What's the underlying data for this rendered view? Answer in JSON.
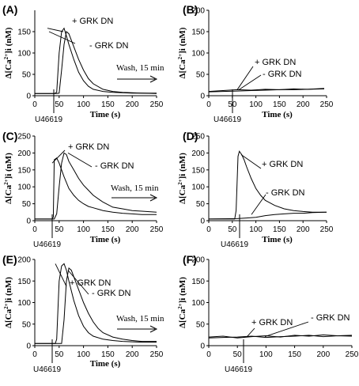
{
  "chart_data": [
    {
      "panel": "(A)",
      "type": "line",
      "xlabel": "Time (s)",
      "ylabel_parts": [
        "Δ[Ca",
        "2+",
        "]i (nM)"
      ],
      "xlim": [
        0,
        250
      ],
      "ylim": [
        0,
        200
      ],
      "xticks": [
        "0",
        "50",
        "100",
        "150",
        "200",
        "250"
      ],
      "yticks": [
        "0",
        "50",
        "100",
        "150"
      ],
      "annotations": [
        {
          "text": "+ GRK DN"
        },
        {
          "text": "- GRK DN"
        }
      ],
      "wash_label": "Wash, 15 min",
      "stimulus_label": "U46619",
      "stimulus_time": 50,
      "series": [
        {
          "name": "+ GRK DN",
          "x": [
            0,
            40,
            45,
            50,
            55,
            60,
            65,
            70,
            80,
            90,
            100,
            110,
            120,
            140,
            160,
            180,
            200,
            220,
            250
          ],
          "y": [
            5,
            5,
            8,
            100,
            150,
            158,
            140,
            120,
            85,
            55,
            35,
            22,
            15,
            10,
            8,
            7,
            6,
            6,
            5
          ]
        },
        {
          "name": "- GRK DN",
          "x": [
            0,
            45,
            50,
            55,
            60,
            65,
            70,
            75,
            80,
            90,
            100,
            110,
            120,
            140,
            160,
            180,
            200,
            220,
            250
          ],
          "y": [
            5,
            5,
            6,
            60,
            120,
            150,
            145,
            130,
            115,
            85,
            60,
            40,
            28,
            15,
            10,
            8,
            7,
            6,
            6
          ]
        }
      ]
    },
    {
      "panel": "(B)",
      "type": "line",
      "xlabel": "Time (s)",
      "ylabel_parts": [
        "Δ[Ca",
        "2+",
        "]i (nM)"
      ],
      "xlim": [
        0,
        250
      ],
      "ylim": [
        0,
        200
      ],
      "xticks": [
        "0",
        "50",
        "100",
        "150",
        "200",
        "250"
      ],
      "yticks": [
        "0",
        "50",
        "100",
        "150",
        "200"
      ],
      "annotations": [
        {
          "text": "+ GRK DN"
        },
        {
          "text": "- GRK DN"
        }
      ],
      "stimulus_label": "U46619",
      "stimulus_time": 60,
      "series": [
        {
          "name": "+ GRK DN",
          "x": [
            0,
            30,
            60,
            90,
            120,
            150,
            180,
            210,
            245
          ],
          "y": [
            10,
            12,
            14,
            13,
            15,
            14,
            16,
            15,
            17
          ]
        },
        {
          "name": "- GRK DN",
          "x": [
            0,
            30,
            60,
            90,
            120,
            150,
            180,
            210,
            245
          ],
          "y": [
            9,
            10,
            11,
            12,
            13,
            14,
            14,
            15,
            16
          ]
        }
      ]
    },
    {
      "panel": "(C)",
      "type": "line",
      "xlabel": "Time (s)",
      "ylabel_parts": [
        "Δ[Ca",
        "2+",
        "]i (nM)"
      ],
      "xlim": [
        0,
        250
      ],
      "ylim": [
        0,
        250
      ],
      "xticks": [
        "0",
        "50",
        "100",
        "150",
        "200",
        "250"
      ],
      "yticks": [
        "0",
        "50",
        "100",
        "150",
        "200",
        "250"
      ],
      "annotations": [
        {
          "text": "+ GRK DN"
        },
        {
          "text": "- GRK DN"
        }
      ],
      "wash_label": "Wash, 15 min",
      "stimulus_label": "U46619",
      "stimulus_time": 40,
      "series": [
        {
          "name": "+ GRK DN",
          "x": [
            0,
            35,
            38,
            40,
            45,
            50,
            60,
            70,
            80,
            90,
            100,
            110,
            120,
            140,
            160,
            180,
            200,
            220,
            250
          ],
          "y": [
            5,
            5,
            10,
            180,
            185,
            170,
            130,
            95,
            75,
            60,
            50,
            42,
            38,
            30,
            25,
            22,
            20,
            18,
            18
          ]
        },
        {
          "name": "- GRK DN",
          "x": [
            0,
            40,
            45,
            50,
            55,
            60,
            65,
            70,
            80,
            90,
            100,
            110,
            120,
            140,
            160,
            180,
            200,
            220,
            250
          ],
          "y": [
            5,
            5,
            20,
            100,
            170,
            200,
            195,
            175,
            150,
            125,
            105,
            90,
            75,
            55,
            40,
            35,
            30,
            28,
            25
          ]
        }
      ]
    },
    {
      "panel": "(D)",
      "type": "line",
      "xlabel": "Time (s)",
      "ylabel_parts": [
        "Δ[Ca",
        "2+",
        "]i (nM)"
      ],
      "xlim": [
        0,
        250
      ],
      "ylim": [
        0,
        250
      ],
      "xticks": [
        "0",
        "50",
        "100",
        "150",
        "200",
        "250"
      ],
      "yticks": [
        "0",
        "50",
        "100",
        "150",
        "200",
        "250"
      ],
      "annotations": [
        {
          "text": "+ GRK DN"
        },
        {
          "text": "- GRK DN"
        }
      ],
      "stimulus_label": "U46619",
      "stimulus_time": 60,
      "series": [
        {
          "name": "+ GRK DN",
          "x": [
            0,
            55,
            58,
            62,
            65,
            70,
            75,
            80,
            90,
            100,
            110,
            120,
            140,
            160,
            180,
            200,
            220,
            250
          ],
          "y": [
            5,
            5,
            30,
            190,
            205,
            195,
            180,
            160,
            125,
            95,
            75,
            60,
            45,
            35,
            30,
            27,
            25,
            25
          ]
        },
        {
          "name": "- GRK DN",
          "x": [
            0,
            60,
            80,
            100,
            120,
            140,
            160,
            180,
            200,
            220,
            250
          ],
          "y": [
            5,
            6,
            8,
            10,
            15,
            18,
            20,
            22,
            22,
            24,
            25
          ]
        }
      ]
    },
    {
      "panel": "(E)",
      "type": "line",
      "xlabel": "Time (s)",
      "ylabel_parts": [
        "Δ[Ca",
        "2+",
        "]i (nM)"
      ],
      "xlim": [
        0,
        250
      ],
      "ylim": [
        0,
        200
      ],
      "xticks": [
        "0",
        "50",
        "100",
        "150",
        "200",
        "250"
      ],
      "yticks": [
        "0",
        "50",
        "100",
        "150",
        "200"
      ],
      "annotations": [
        {
          "text": "+ GRK DN"
        },
        {
          "text": "- GRK DN"
        }
      ],
      "wash_label": "Wash, 15 min",
      "stimulus_label": "U46619",
      "stimulus_time": 50,
      "series": [
        {
          "name": "+ GRK DN",
          "x": [
            0,
            42,
            45,
            50,
            55,
            60,
            65,
            70,
            80,
            90,
            100,
            110,
            120,
            140,
            160,
            180,
            200,
            220,
            250
          ],
          "y": [
            5,
            5,
            15,
            150,
            185,
            190,
            175,
            150,
            105,
            70,
            45,
            30,
            22,
            15,
            12,
            10,
            9,
            8,
            8
          ]
        },
        {
          "name": "- GRK DN",
          "x": [
            0,
            55,
            60,
            65,
            70,
            75,
            80,
            90,
            100,
            110,
            120,
            130,
            140,
            160,
            180,
            200,
            220,
            250
          ],
          "y": [
            5,
            5,
            60,
            150,
            180,
            175,
            160,
            130,
            100,
            75,
            55,
            40,
            30,
            20,
            15,
            12,
            10,
            10
          ]
        }
      ]
    },
    {
      "panel": "(F)",
      "type": "line",
      "xlabel": "",
      "ylabel_parts": [
        "Δ[Ca",
        "2+",
        "]i (nM)"
      ],
      "xlim": [
        0,
        250
      ],
      "ylim": [
        0,
        200
      ],
      "xticks": [
        "0",
        "50",
        "100",
        "150",
        "200",
        "250"
      ],
      "yticks": [
        "0",
        "50",
        "100",
        "150",
        "200"
      ],
      "annotations": [
        {
          "text": "+ GRK DN"
        },
        {
          "text": "- GRK DN"
        }
      ],
      "stimulus_label": "U46619",
      "stimulus_time": 80,
      "series": [
        {
          "name": "+ GRK DN",
          "x": [
            0,
            25,
            50,
            75,
            100,
            125,
            150,
            175,
            200,
            225,
            250
          ],
          "y": [
            20,
            22,
            18,
            21,
            23,
            20,
            24,
            22,
            25,
            23,
            24
          ]
        },
        {
          "name": "- GRK DN",
          "x": [
            0,
            25,
            50,
            75,
            100,
            125,
            150,
            175,
            200,
            225,
            250
          ],
          "y": [
            18,
            19,
            20,
            22,
            19,
            21,
            22,
            24,
            21,
            23,
            22
          ]
        }
      ]
    }
  ]
}
